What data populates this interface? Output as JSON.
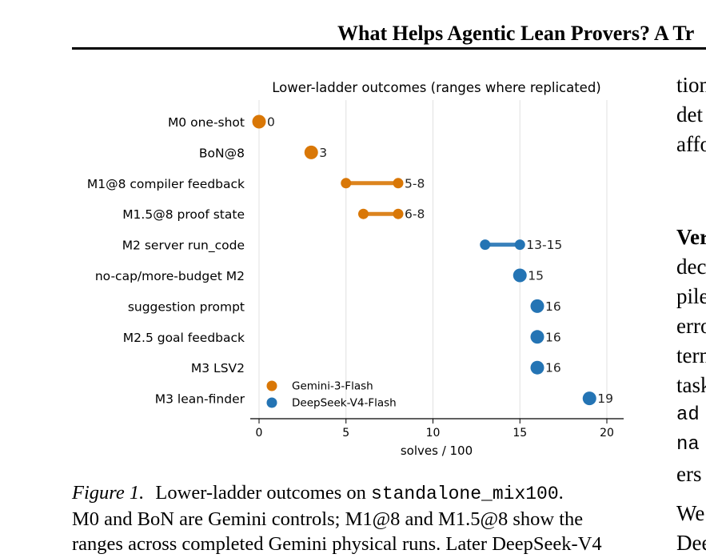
{
  "page": {
    "header_title": "What Helps Agentic Lean Provers? A Tr",
    "caption_lead": "Figure 1.",
    "caption_text": "Lower-ladder outcomes on",
    "caption_code": "standalone_mix100",
    "caption_after_code": ".",
    "caption_line2": "M0 and BoN are Gemini controls; M1@8 and M1.5@8 show the",
    "caption_line3": "ranges across completed Gemini physical runs. Later DeepSeek-V4",
    "right_col": [
      {
        "text": "tion",
        "style": "normal"
      },
      {
        "text": "det",
        "style": "normal"
      },
      {
        "text": "affo",
        "style": "normal"
      },
      {
        "text": "",
        "style": "normal"
      },
      {
        "text": "Ver",
        "style": "bold"
      },
      {
        "text": "dec",
        "style": "normal"
      },
      {
        "text": "pile",
        "style": "normal"
      },
      {
        "text": "erro",
        "style": "normal"
      },
      {
        "text": "tern",
        "style": "normal"
      },
      {
        "text": "task",
        "style": "normal"
      },
      {
        "text": "ad",
        "style": "mono"
      },
      {
        "text": "na",
        "style": "mono"
      },
      {
        "text": "ers",
        "style": "normal"
      },
      {
        "text": "We",
        "style": "normal"
      },
      {
        "text": "Dee",
        "style": "normal"
      }
    ]
  },
  "chart_data": {
    "type": "dumbbell",
    "title": "Lower-ladder outcomes (ranges where replicated)",
    "xlabel": "solves / 100",
    "xlim": [
      -0.5,
      21
    ],
    "xticks": [
      0,
      5,
      10,
      15,
      20
    ],
    "grid": "vertical",
    "legend_position": "lower-left",
    "series": [
      {
        "name": "Gemini-3-Flash",
        "color": "#d97706"
      },
      {
        "name": "DeepSeek-V4-Flash",
        "color": "#2474b4"
      }
    ],
    "rows": [
      {
        "label": "M0 one-shot",
        "series": 0,
        "min": 0,
        "max": 0,
        "value_label": "0"
      },
      {
        "label": "BoN@8",
        "series": 0,
        "min": 3,
        "max": 3,
        "value_label": "3"
      },
      {
        "label": "M1@8 compiler feedback",
        "series": 0,
        "min": 5,
        "max": 8,
        "value_label": "5-8"
      },
      {
        "label": "M1.5@8 proof state",
        "series": 0,
        "min": 6,
        "max": 8,
        "value_label": "6-8"
      },
      {
        "label": "M2 server run_code",
        "series": 1,
        "min": 13,
        "max": 15,
        "value_label": "13-15"
      },
      {
        "label": "no-cap/more-budget M2",
        "series": 1,
        "min": 15,
        "max": 15,
        "value_label": "15"
      },
      {
        "label": "suggestion prompt",
        "series": 1,
        "min": 16,
        "max": 16,
        "value_label": "16"
      },
      {
        "label": "M2.5 goal feedback",
        "series": 1,
        "min": 16,
        "max": 16,
        "value_label": "16"
      },
      {
        "label": "M3 LSV2",
        "series": 1,
        "min": 16,
        "max": 16,
        "value_label": "16"
      },
      {
        "label": "M3 lean-finder",
        "series": 1,
        "min": 19,
        "max": 19,
        "value_label": "19"
      }
    ]
  }
}
